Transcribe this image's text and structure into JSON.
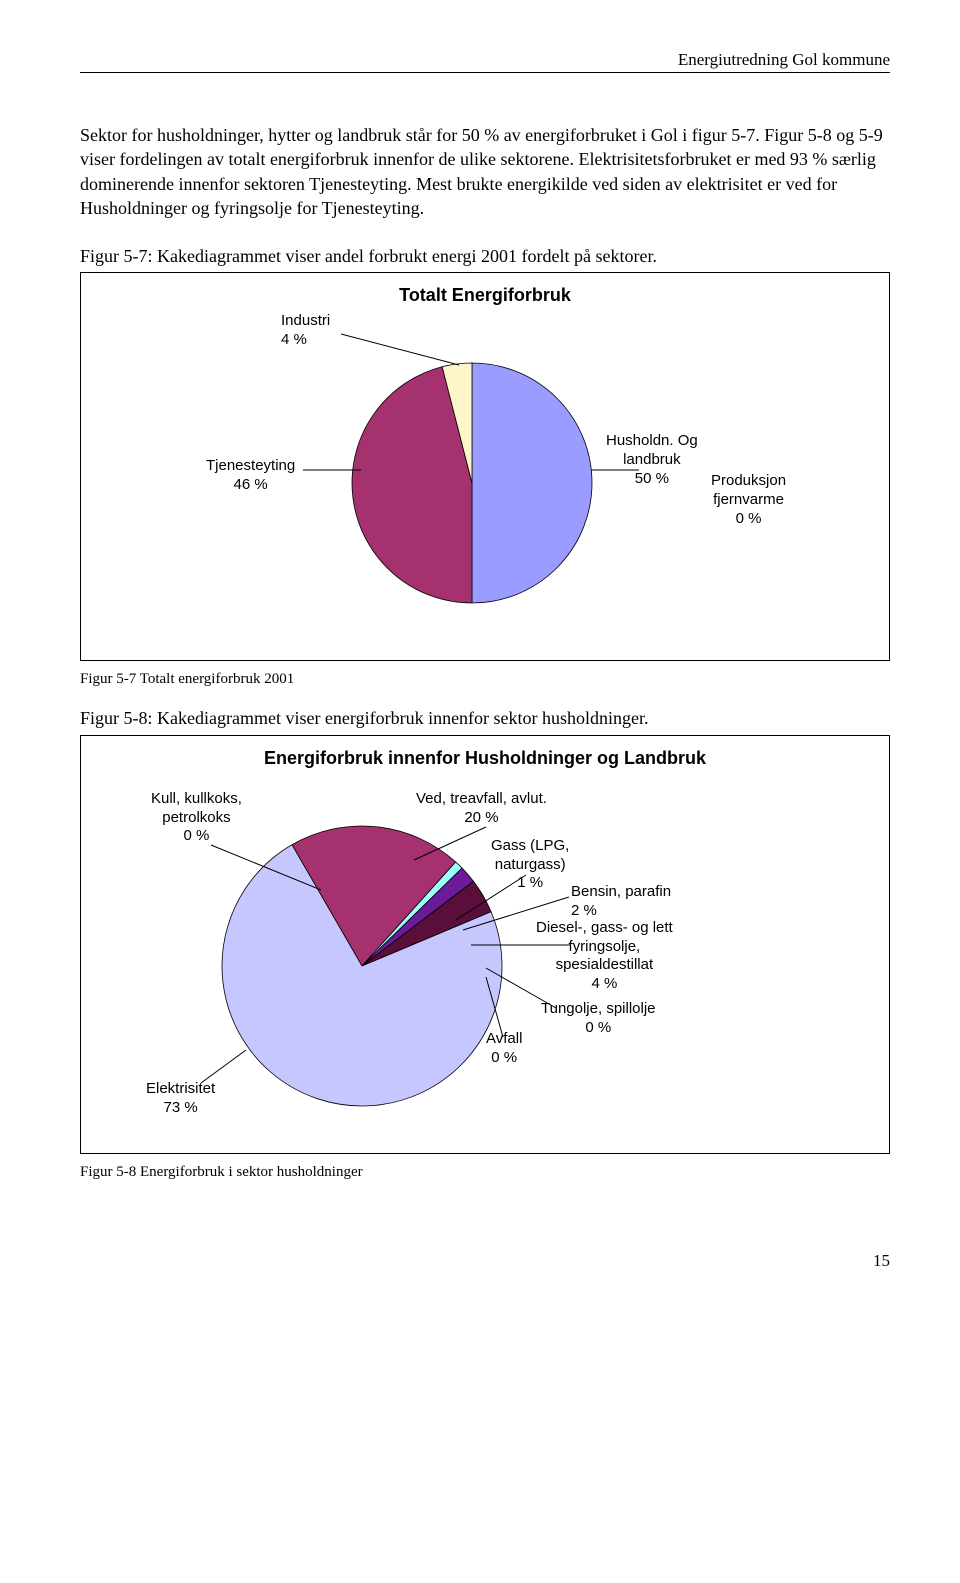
{
  "header": {
    "text": "Energiutredning Gol kommune"
  },
  "paragraphs": {
    "p1": "Sektor for husholdninger, hytter og landbruk står for 50 % av energiforbruket i Gol i figur 5-7. Figur 5-8 og 5-9 viser fordelingen av totalt energiforbruk innenfor de ulike sektorene. Elektrisitetsforbruket er med 93 % særlig dominerende innenfor sektoren Tjenesteyting. Mest brukte energikilde ved siden av elektrisitet er ved for Husholdninger og fyringsolje for Tjenesteyting.",
    "p2": "Figur 5-7: Kakediagrammet viser andel forbrukt energi 2001 fordelt på sektorer.",
    "p3": "Figur 5-8:  Kakediagrammet viser energiforbruk innenfor sektor husholdninger."
  },
  "chart1": {
    "title": "Totalt Energiforbruk",
    "slices": [
      {
        "label_l1": "Husholdn. Og",
        "label_l2": "landbruk",
        "label_l3": "50 %",
        "name": "husholdn",
        "value": 50,
        "color": "#9a9cff"
      },
      {
        "label_l1": "Produksjon",
        "label_l2": "fjernvarme",
        "label_l3": "0 %",
        "name": "fjernvarme",
        "value": 0,
        "color": "#5a0f3a"
      },
      {
        "label_l1": "Tjenesteyting",
        "label_l2": "46 %",
        "label_l3": "",
        "name": "tjenesteyting",
        "value": 46,
        "color": "#a5316e"
      },
      {
        "label_l1": "Industri",
        "label_l2": "4 %",
        "label_l3": "",
        "name": "industri",
        "value": 4,
        "color": "#fdf6c8"
      }
    ],
    "radius": 120,
    "stroke": "#000000",
    "caption_below": "Figur 5-7 Totalt energiforbruk 2001"
  },
  "chart2": {
    "title": "Energiforbruk innenfor Husholdninger og Landbruk",
    "slices": [
      {
        "label": "Ved, treavfall, avlut.\n20 %",
        "name": "ved",
        "value": 20,
        "color": "#a5316e"
      },
      {
        "label": "Gass (LPG,\nnaturgass)\n1 %",
        "name": "gass",
        "value": 1,
        "color": "#9cfffb"
      },
      {
        "label": "Bensin, parafin\n2 %",
        "name": "bensin",
        "value": 2,
        "color": "#6a1b9a"
      },
      {
        "label": "Diesel-, gass- og lett\nfyringsolje,\nspesialdestillat\n4 %",
        "name": "diesel",
        "value": 4,
        "color": "#5a0f3a"
      },
      {
        "label": "Tungolje, spillolje\n0 %",
        "name": "tungolje",
        "value": 0,
        "color": "#cccccc"
      },
      {
        "label": "Avfall\n0 %",
        "name": "avfall",
        "value": 0,
        "color": "#cccccc"
      },
      {
        "label": "Elektrisitet\n73 %",
        "name": "elektrisitet",
        "value": 73,
        "color": "#c7c7ff"
      },
      {
        "label": "Kull, kullkoks,\npetrolkoks\n0 %",
        "name": "kull",
        "value": 0,
        "color": "#cccccc"
      }
    ],
    "radius": 140,
    "stroke": "#000000",
    "caption_below": "Figur 5-8 Energiforbruk i sektor husholdninger"
  },
  "page_number": "15"
}
